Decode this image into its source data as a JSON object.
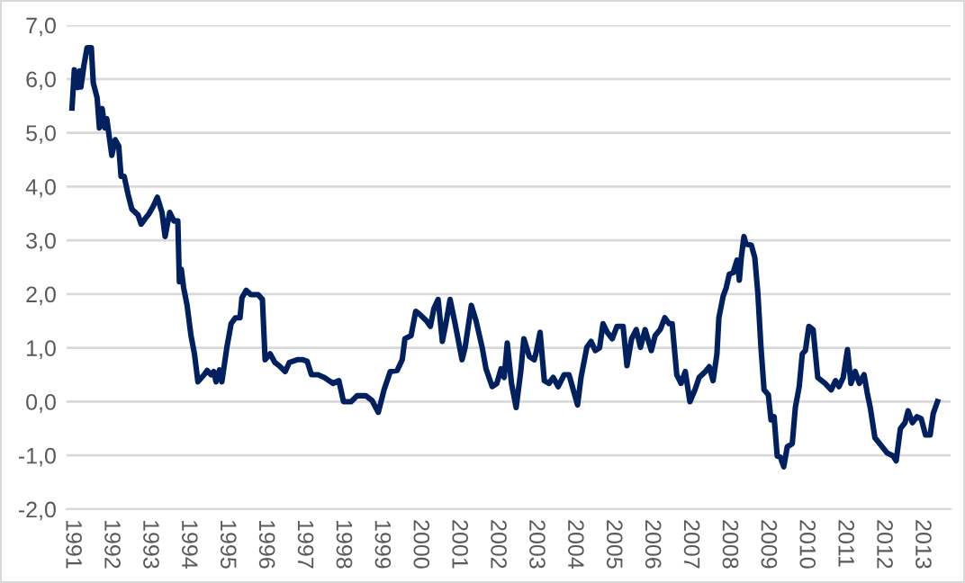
{
  "chart_data": {
    "type": "line",
    "x": [
      1991.0,
      1991.06,
      1991.15,
      1991.2,
      1991.23,
      1991.31,
      1991.39,
      1991.5,
      1991.55,
      1991.65,
      1991.71,
      1991.78,
      1991.85,
      1991.9,
      1992.03,
      1992.12,
      1992.21,
      1992.27,
      1992.35,
      1992.45,
      1992.55,
      1992.71,
      1992.79,
      1992.9,
      1992.99,
      1993.1,
      1993.21,
      1993.33,
      1993.41,
      1993.53,
      1993.64,
      1993.74,
      1993.78,
      1993.83,
      1993.89,
      1993.98,
      1994.08,
      1994.17,
      1994.26,
      1994.42,
      1994.5,
      1994.6,
      1994.67,
      1994.73,
      1994.82,
      1994.88,
      1995.01,
      1995.12,
      1995.23,
      1995.35,
      1995.4,
      1995.51,
      1995.63,
      1995.82,
      1995.93,
      1996.0,
      1996.13,
      1996.25,
      1996.36,
      1996.52,
      1996.63,
      1996.83,
      1996.98,
      1997.09,
      1997.2,
      1997.37,
      1997.53,
      1997.76,
      1997.91,
      1998.03,
      1998.23,
      1998.38,
      1998.61,
      1998.77,
      1998.93,
      1999.08,
      1999.24,
      1999.42,
      1999.55,
      1999.62,
      1999.78,
      1999.9,
      2000.01,
      2000.17,
      2000.28,
      2000.37,
      2000.48,
      2000.59,
      2000.68,
      2000.79,
      2000.92,
      2001.1,
      2001.18,
      2001.34,
      2001.46,
      2001.62,
      2001.72,
      2001.88,
      2002.0,
      2002.11,
      2002.19,
      2002.27,
      2002.38,
      2002.5,
      2002.62,
      2002.7,
      2002.84,
      2002.97,
      2003.01,
      2003.12,
      2003.23,
      2003.35,
      2003.46,
      2003.59,
      2003.74,
      2003.87,
      2004.09,
      2004.18,
      2004.33,
      2004.44,
      2004.55,
      2004.66,
      2004.75,
      2004.86,
      2004.99,
      2005.11,
      2005.27,
      2005.37,
      2005.49,
      2005.61,
      2005.72,
      2005.84,
      2006.0,
      2006.1,
      2006.23,
      2006.35,
      2006.46,
      2006.54,
      2006.66,
      2006.77,
      2006.88,
      2007.0,
      2007.13,
      2007.24,
      2007.4,
      2007.5,
      2007.6,
      2007.7,
      2007.75,
      2007.86,
      2007.94,
      2008.02,
      2008.12,
      2008.22,
      2008.28,
      2008.33,
      2008.4,
      2008.45,
      2008.59,
      2008.68,
      2008.76,
      2008.84,
      2008.92,
      2009.03,
      2009.1,
      2009.18,
      2009.26,
      2009.34,
      2009.43,
      2009.52,
      2009.65,
      2009.73,
      2009.83,
      2009.91,
      2009.99,
      2010.08,
      2010.19,
      2010.31,
      2010.5,
      2010.66,
      2010.77,
      2010.86,
      2010.97,
      2011.08,
      2011.17,
      2011.28,
      2011.39,
      2011.51,
      2011.59,
      2011.67,
      2011.79,
      2011.98,
      2012.1,
      2012.26,
      2012.34,
      2012.45,
      2012.57,
      2012.65,
      2012.76,
      2012.88,
      2012.99,
      2013.1,
      2013.22,
      2013.3,
      2013.41
    ],
    "series": [
      {
        "color": "#002060",
        "values": [
          5.46,
          6.17,
          5.84,
          6.15,
          5.85,
          6.26,
          6.58,
          6.58,
          5.93,
          5.65,
          5.09,
          5.45,
          5.09,
          5.26,
          4.58,
          4.87,
          4.75,
          4.19,
          4.19,
          3.86,
          3.58,
          3.47,
          3.3,
          3.41,
          3.49,
          3.63,
          3.8,
          3.52,
          3.07,
          3.52,
          3.36,
          3.36,
          2.23,
          2.46,
          2.12,
          1.79,
          1.23,
          0.89,
          0.37,
          0.5,
          0.58,
          0.5,
          0.56,
          0.37,
          0.59,
          0.37,
          1.01,
          1.45,
          1.56,
          1.56,
          1.93,
          2.07,
          1.99,
          1.99,
          1.9,
          0.78,
          0.89,
          0.73,
          0.67,
          0.56,
          0.73,
          0.78,
          0.78,
          0.75,
          0.5,
          0.5,
          0.45,
          0.34,
          0.39,
          0.0,
          0.0,
          0.11,
          0.11,
          0.02,
          -0.2,
          0.22,
          0.56,
          0.58,
          0.78,
          1.17,
          1.23,
          1.68,
          1.62,
          1.51,
          1.4,
          1.73,
          1.9,
          1.12,
          1.45,
          1.9,
          1.45,
          0.78,
          1.01,
          1.79,
          1.51,
          1.01,
          0.61,
          0.28,
          0.34,
          0.61,
          0.45,
          1.09,
          0.34,
          -0.11,
          0.56,
          1.17,
          0.84,
          0.78,
          0.89,
          1.29,
          0.39,
          0.34,
          0.45,
          0.28,
          0.5,
          0.5,
          -0.06,
          0.45,
          1.01,
          1.12,
          0.95,
          1.0,
          1.45,
          1.29,
          1.17,
          1.4,
          1.4,
          0.67,
          1.17,
          1.34,
          1.01,
          1.34,
          0.95,
          1.23,
          1.34,
          1.56,
          1.45,
          1.45,
          0.5,
          0.34,
          0.56,
          0.0,
          0.22,
          0.45,
          0.56,
          0.65,
          0.39,
          0.89,
          1.56,
          1.96,
          2.12,
          2.37,
          2.4,
          2.63,
          2.26,
          2.68,
          3.07,
          2.93,
          2.91,
          2.68,
          2.01,
          1.01,
          0.22,
          0.13,
          -0.34,
          -0.28,
          -1.01,
          -1.03,
          -1.21,
          -0.84,
          -0.78,
          -0.11,
          0.28,
          0.89,
          0.95,
          1.4,
          1.34,
          0.45,
          0.34,
          0.22,
          0.39,
          0.28,
          0.45,
          0.97,
          0.34,
          0.56,
          0.34,
          0.5,
          0.17,
          -0.11,
          -0.67,
          -0.84,
          -0.95,
          -1.01,
          -1.1,
          -0.5,
          -0.39,
          -0.17,
          -0.39,
          -0.28,
          -0.32,
          -0.62,
          -0.62,
          -0.22,
          0.0
        ]
      }
    ],
    "xlim": [
      1990.86,
      2013.75
    ],
    "xticks": [
      1991,
      1992,
      1993,
      1994,
      1995,
      1996,
      1997,
      1998,
      1999,
      2000,
      2001,
      2002,
      2003,
      2004,
      2005,
      2006,
      2007,
      2008,
      2009,
      2010,
      2011,
      2012,
      2013
    ],
    "ylim": [
      -2,
      7
    ],
    "yticks": [
      {
        "value": -2,
        "label": "-2,0"
      },
      {
        "value": -1,
        "label": "-1,0"
      },
      {
        "value": 0,
        "label": "0,0"
      },
      {
        "value": 1,
        "label": "1,0"
      },
      {
        "value": 2,
        "label": "2,0"
      },
      {
        "value": 3,
        "label": "3,0"
      },
      {
        "value": 4,
        "label": "4,0"
      },
      {
        "value": 5,
        "label": "5,0"
      },
      {
        "value": 6,
        "label": "6,0"
      },
      {
        "value": 7,
        "label": "7,0"
      }
    ],
    "grid": "y",
    "legend": false,
    "marker": "none",
    "line_style": "solid"
  }
}
